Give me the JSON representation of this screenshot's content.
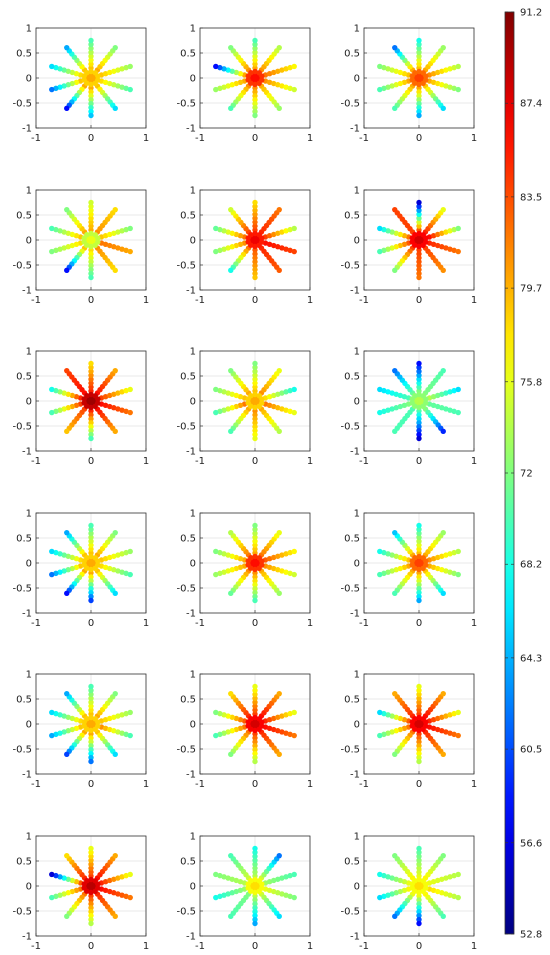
{
  "chart_data": {
    "type": "scatter",
    "layout": {
      "rows": 6,
      "cols": 3
    },
    "axes": {
      "xlim": [
        -1,
        1
      ],
      "ylim": [
        -1,
        1
      ],
      "xticks": [
        -1,
        0,
        1
      ],
      "yticks": [
        -1,
        -0.5,
        0,
        0.5,
        1
      ],
      "xtick_labels": [
        "-1",
        "0",
        "1"
      ],
      "ytick_labels": [
        "-1",
        "-0.5",
        "0",
        "0.5",
        "1"
      ],
      "grid": true
    },
    "colorbar": {
      "min": 52.8,
      "max": 91.2,
      "colormap": "jet",
      "tick_values": [
        91.2,
        87.4,
        83.5,
        79.7,
        75.8,
        72,
        68.2,
        64.3,
        60.5,
        56.6,
        52.8
      ],
      "tick_labels": [
        "91.2",
        "87.4",
        "83.5",
        "79.7",
        "75.8",
        "72",
        "68.2",
        "64.3",
        "60.5",
        "56.6",
        "52.8"
      ]
    },
    "star_geometry": {
      "arms": 10,
      "arm_angles_deg": [
        90,
        54,
        18,
        -18,
        -54,
        -90,
        -126,
        -162,
        162,
        126
      ],
      "inner_radius": 0.2,
      "outer_radius": 0.75,
      "points_per_arm": 8,
      "core_ring_radii": [
        0.06,
        0.13
      ],
      "core_points_per_ring": [
        6,
        10
      ]
    },
    "panels": [
      {
        "center": 80,
        "arms_inner": [
          79,
          80,
          79,
          78,
          79,
          80,
          80,
          79,
          78,
          79
        ],
        "arms_outer": [
          70,
          72,
          73,
          70,
          66,
          65,
          58,
          62,
          66,
          64
        ]
      },
      {
        "center": 86,
        "arms_inner": [
          80,
          81,
          82,
          81,
          80,
          81,
          81,
          80,
          80,
          81
        ],
        "arms_outer": [
          70,
          74,
          77,
          75,
          73,
          72,
          70,
          73,
          58,
          72
        ]
      },
      {
        "center": 84,
        "arms_inner": [
          79,
          80,
          81,
          80,
          79,
          80,
          80,
          80,
          79,
          80
        ],
        "arms_outer": [
          68,
          73,
          74,
          72,
          66,
          64,
          70,
          70,
          72,
          62
        ]
      },
      {
        "center": 76,
        "arms_inner": [
          80,
          81,
          79,
          82,
          81,
          78,
          79,
          78,
          79,
          80
        ],
        "arms_outer": [
          75,
          78,
          72,
          80,
          78,
          70,
          58,
          72,
          70,
          72
        ]
      },
      {
        "center": 87,
        "arms_inner": [
          84,
          85,
          84,
          86,
          85,
          83,
          82,
          81,
          82,
          84
        ],
        "arms_outer": [
          78,
          82,
          74,
          84,
          83,
          79,
          68,
          72,
          71,
          75
        ]
      },
      {
        "center": 88,
        "arms_inner": [
          83,
          85,
          86,
          85,
          84,
          84,
          84,
          83,
          82,
          84
        ],
        "arms_outer": [
          56,
          76,
          72,
          82,
          81,
          82,
          72,
          70,
          66,
          84
        ]
      },
      {
        "center": 90,
        "arms_inner": [
          85,
          86,
          84,
          86,
          86,
          85,
          84,
          84,
          85,
          86
        ],
        "arms_outer": [
          78,
          80,
          76,
          82,
          80,
          70,
          79,
          70,
          68,
          84
        ]
      },
      {
        "center": 80,
        "arms_inner": [
          79,
          81,
          78,
          82,
          80,
          81,
          80,
          82,
          79,
          80
        ],
        "arms_outer": [
          72,
          76,
          68,
          76,
          74,
          76,
          70,
          70,
          72,
          72
        ]
      },
      {
        "center": 74,
        "arms_inner": [
          72,
          72,
          74,
          71,
          72,
          70,
          70,
          72,
          70,
          71
        ],
        "arms_outer": [
          58,
          70,
          66,
          70,
          59,
          56,
          70,
          68,
          66,
          62
        ]
      },
      {
        "center": 80,
        "arms_inner": [
          79,
          80,
          79,
          78,
          79,
          80,
          80,
          79,
          78,
          79
        ],
        "arms_outer": [
          70,
          72,
          73,
          70,
          66,
          60,
          58,
          62,
          66,
          64
        ]
      },
      {
        "center": 86,
        "arms_inner": [
          80,
          82,
          83,
          81,
          80,
          81,
          81,
          80,
          80,
          82
        ],
        "arms_outer": [
          72,
          76,
          77,
          75,
          73,
          70,
          71,
          73,
          72,
          74
        ]
      },
      {
        "center": 84,
        "arms_inner": [
          79,
          80,
          81,
          80,
          79,
          80,
          80,
          80,
          79,
          80
        ],
        "arms_outer": [
          68,
          73,
          74,
          72,
          66,
          64,
          70,
          70,
          68,
          65
        ]
      },
      {
        "center": 80,
        "arms_inner": [
          79,
          80,
          79,
          81,
          79,
          80,
          80,
          79,
          78,
          79
        ],
        "arms_outer": [
          70,
          72,
          73,
          70,
          66,
          62,
          60,
          64,
          66,
          64
        ]
      },
      {
        "center": 88,
        "arms_inner": [
          84,
          86,
          85,
          86,
          85,
          84,
          82,
          82,
          83,
          85
        ],
        "arms_outer": [
          76,
          80,
          76,
          82,
          80,
          74,
          72,
          70,
          72,
          78
        ]
      },
      {
        "center": 88,
        "arms_inner": [
          84,
          86,
          85,
          86,
          85,
          84,
          82,
          82,
          83,
          85
        ],
        "arms_outer": [
          76,
          80,
          76,
          82,
          80,
          74,
          72,
          70,
          66,
          80
        ]
      },
      {
        "center": 89,
        "arms_inner": [
          84,
          86,
          85,
          86,
          85,
          84,
          82,
          82,
          83,
          85
        ],
        "arms_outer": [
          76,
          80,
          76,
          82,
          80,
          74,
          72,
          70,
          56,
          78
        ]
      },
      {
        "center": 78,
        "arms_inner": [
          74,
          75,
          73,
          76,
          75,
          74,
          72,
          73,
          74,
          75
        ],
        "arms_outer": [
          68,
          62,
          70,
          72,
          66,
          64,
          70,
          68,
          72,
          70
        ]
      },
      {
        "center": 78,
        "arms_inner": [
          76,
          77,
          76,
          78,
          77,
          76,
          76,
          77,
          76,
          77
        ],
        "arms_outer": [
          70,
          72,
          74,
          74,
          70,
          58,
          62,
          66,
          68,
          72
        ]
      }
    ]
  }
}
